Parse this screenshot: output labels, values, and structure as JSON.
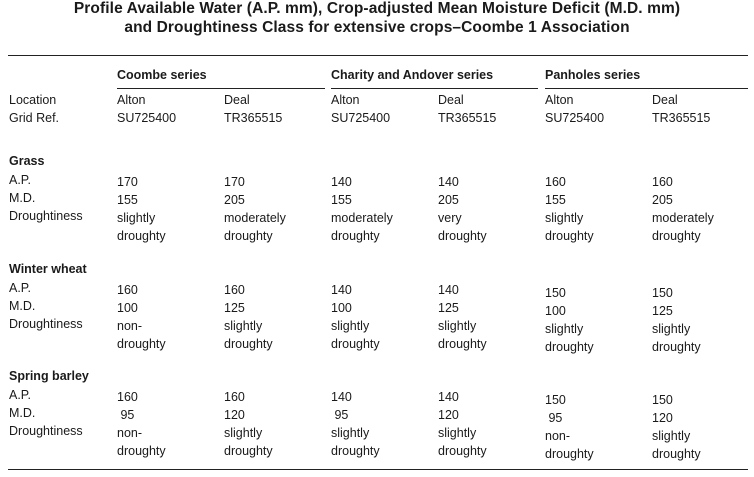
{
  "title_line1": "Profile Available Water (A.P. mm), Crop-adjusted Mean Moisture Deficit (M.D. mm)",
  "title_line2": "and Droughtiness Class for extensive crops–Coombe 1 Association",
  "header": {
    "location_label": "Location",
    "grid_ref_label": "Grid Ref.",
    "groups": [
      "Coombe series",
      "Charity and Andover series",
      "Panholes series"
    ],
    "columns": [
      {
        "location": "Alton",
        "grid": "SU725400"
      },
      {
        "location": "Deal",
        "grid": "TR365515"
      },
      {
        "location": "Alton",
        "grid": "SU725400"
      },
      {
        "location": "Deal",
        "grid": "TR365515"
      },
      {
        "location": "Alton",
        "grid": "SU725400"
      },
      {
        "location": "Deal",
        "grid": "TR365515"
      }
    ]
  },
  "row_labels": {
    "ap": "A.P.",
    "md": "M.D.",
    "droughtiness": "Droughtiness"
  },
  "sections": [
    {
      "crop": "Grass",
      "ap": [
        "170",
        "170",
        "140",
        "140",
        "160",
        "160"
      ],
      "md": [
        "155",
        "205",
        "155",
        "205",
        "155",
        "205"
      ],
      "droughtiness": [
        [
          "slightly",
          "droughty"
        ],
        [
          "moderately",
          "droughty"
        ],
        [
          "moderately",
          "droughty"
        ],
        [
          "very",
          "droughty"
        ],
        [
          "slightly",
          "droughty"
        ],
        [
          "moderately",
          "droughty"
        ]
      ]
    },
    {
      "crop": "Winter wheat",
      "ap": [
        "160",
        "160",
        "140",
        "140",
        "150",
        "150"
      ],
      "md": [
        "100",
        "125",
        "100",
        "125",
        "100",
        "125"
      ],
      "droughtiness": [
        [
          "non-",
          "droughty"
        ],
        [
          "slightly",
          "droughty"
        ],
        [
          "slightly",
          "droughty"
        ],
        [
          "slightly",
          "droughty"
        ],
        [
          "slightly",
          "droughty"
        ],
        [
          "slightly",
          "droughty"
        ]
      ]
    },
    {
      "crop": "Spring barley",
      "ap": [
        "160",
        "160",
        "140",
        "140",
        "150",
        "150"
      ],
      "md": [
        " 95",
        "120",
        " 95",
        "120",
        " 95",
        "120"
      ],
      "droughtiness": [
        [
          "non-",
          "droughty"
        ],
        [
          "slightly",
          "droughty"
        ],
        [
          "slightly",
          "droughty"
        ],
        [
          "slightly",
          "droughty"
        ],
        [
          "non-",
          "droughty"
        ],
        [
          "slightly",
          "droughty"
        ]
      ]
    }
  ]
}
